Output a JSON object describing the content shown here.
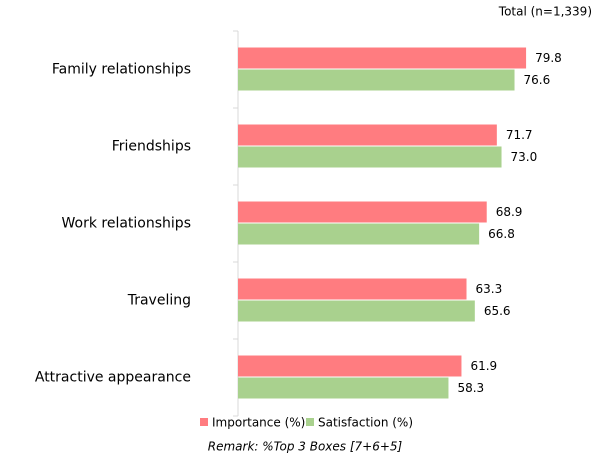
{
  "chart_data": {
    "type": "barh",
    "title": "Total (n=1,339)",
    "remark": "Remark: %Top 3 Boxes [7+6+5]",
    "categories": [
      "Family relationships",
      "Friendships",
      "Work relationships",
      "Traveling",
      "Attractive appearance"
    ],
    "series": [
      {
        "name": "Importance (%)",
        "color": "#ff7c80",
        "values": [
          79.8,
          71.7,
          68.9,
          63.3,
          61.9
        ],
        "value_labels": [
          "79.8",
          "71.7",
          "68.9",
          "63.3",
          "61.9"
        ]
      },
      {
        "name": "Satisfaction (%)",
        "color": "#a9d18e",
        "values": [
          76.6,
          73.0,
          66.8,
          65.6,
          58.3
        ],
        "value_labels": [
          "76.6",
          "73.0",
          "66.8",
          "65.6",
          "58.3"
        ]
      }
    ],
    "xlim": [
      0,
      100
    ]
  }
}
